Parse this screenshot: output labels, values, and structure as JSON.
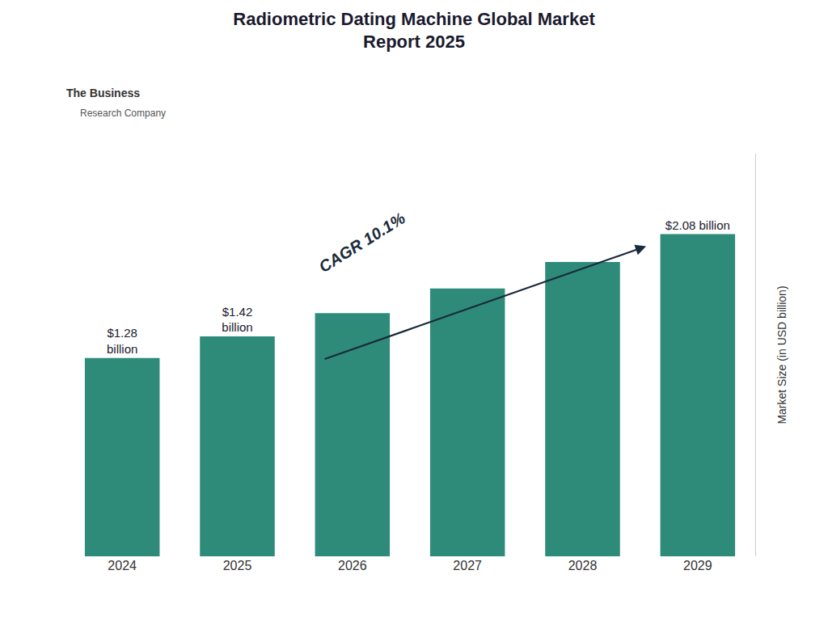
{
  "chart_data": {
    "type": "bar",
    "title": "Radiometric Dating Machine Global Market\nReport 2025",
    "categories": [
      "2024",
      "2025",
      "2026",
      "2027",
      "2028",
      "2029"
    ],
    "values": [
      1.28,
      1.42,
      1.57,
      1.73,
      1.9,
      2.08
    ],
    "value_labels": [
      "$1.28\nbillion",
      "$1.42\nbillion",
      null,
      null,
      null,
      "$2.08 billion"
    ],
    "color": "#2e8b7a",
    "ylim": [
      0,
      2.6
    ],
    "ylabel": "Market Size (in USD billion)",
    "tick_labels": "x",
    "grid": false,
    "annotations": [
      "CAGR 10.1%",
      "The Business",
      "Research Company"
    ]
  }
}
